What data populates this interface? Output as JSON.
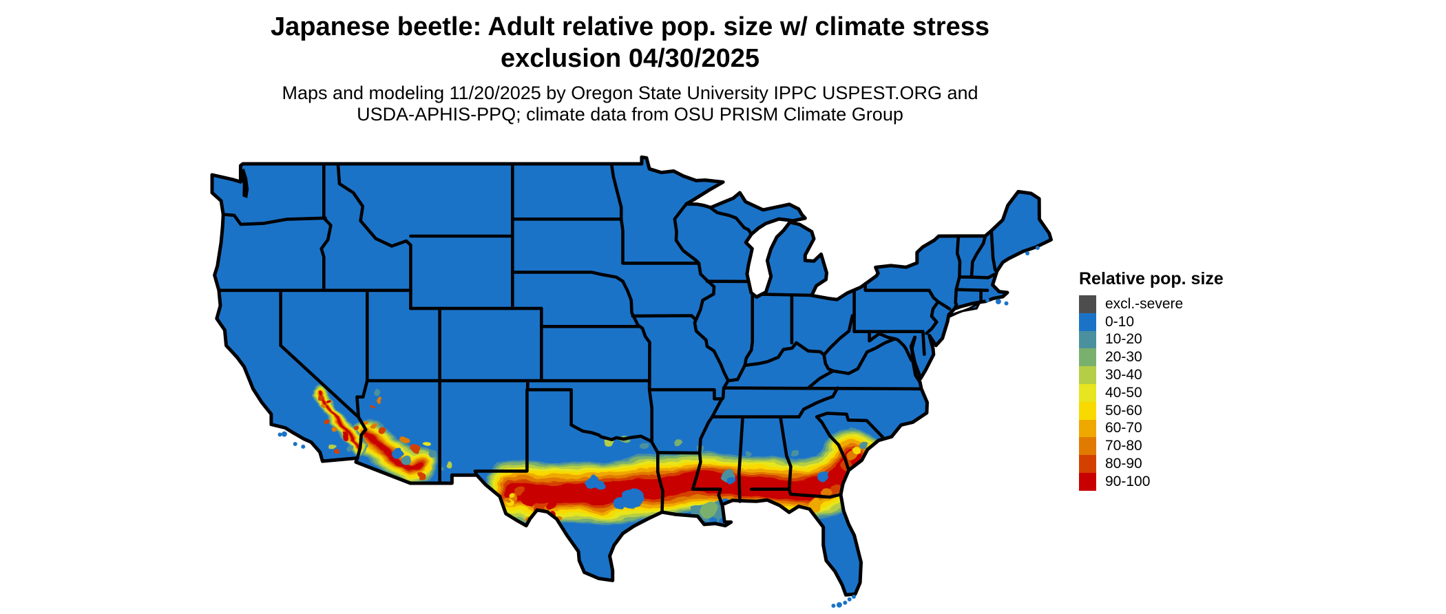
{
  "page": {
    "background": "#ffffff"
  },
  "title": {
    "line1": "Japanese beetle: Adult relative pop. size w/ climate stress",
    "line2": "exclusion 04/30/2025"
  },
  "subtitle": {
    "line1": "Maps and modeling 11/20/2025 by Oregon State University IPPC USPEST.ORG and",
    "line2": "USDA-APHIS-PPQ; climate data from OSU PRISM Climate Group"
  },
  "legend": {
    "title": "Relative pop. size",
    "entries": [
      {
        "label": "excl.-severe",
        "color": "#4d4d4d"
      },
      {
        "label": "0-10",
        "color": "#1b73c8"
      },
      {
        "label": "10-20",
        "color": "#4b909e"
      },
      {
        "label": "20-30",
        "color": "#7ab06e"
      },
      {
        "label": "30-40",
        "color": "#b6ce45"
      },
      {
        "label": "40-50",
        "color": "#e7e51f"
      },
      {
        "label": "50-60",
        "color": "#f8d900"
      },
      {
        "label": "60-70",
        "color": "#efa800"
      },
      {
        "label": "70-80",
        "color": "#e17a00"
      },
      {
        "label": "80-90",
        "color": "#d44000"
      },
      {
        "label": "90-100",
        "color": "#c90000"
      }
    ]
  },
  "map": {
    "border_color": "#000000",
    "water_color": "#ffffff",
    "base_class": "0-10",
    "hot_regions": [
      "band from west/central Texas through Louisiana, Mississippi, Alabama, south Georgia and the Florida panhandle",
      "southern Arizona and southeastern California desert ranges",
      "coastal Georgia / South Carolina"
    ]
  }
}
